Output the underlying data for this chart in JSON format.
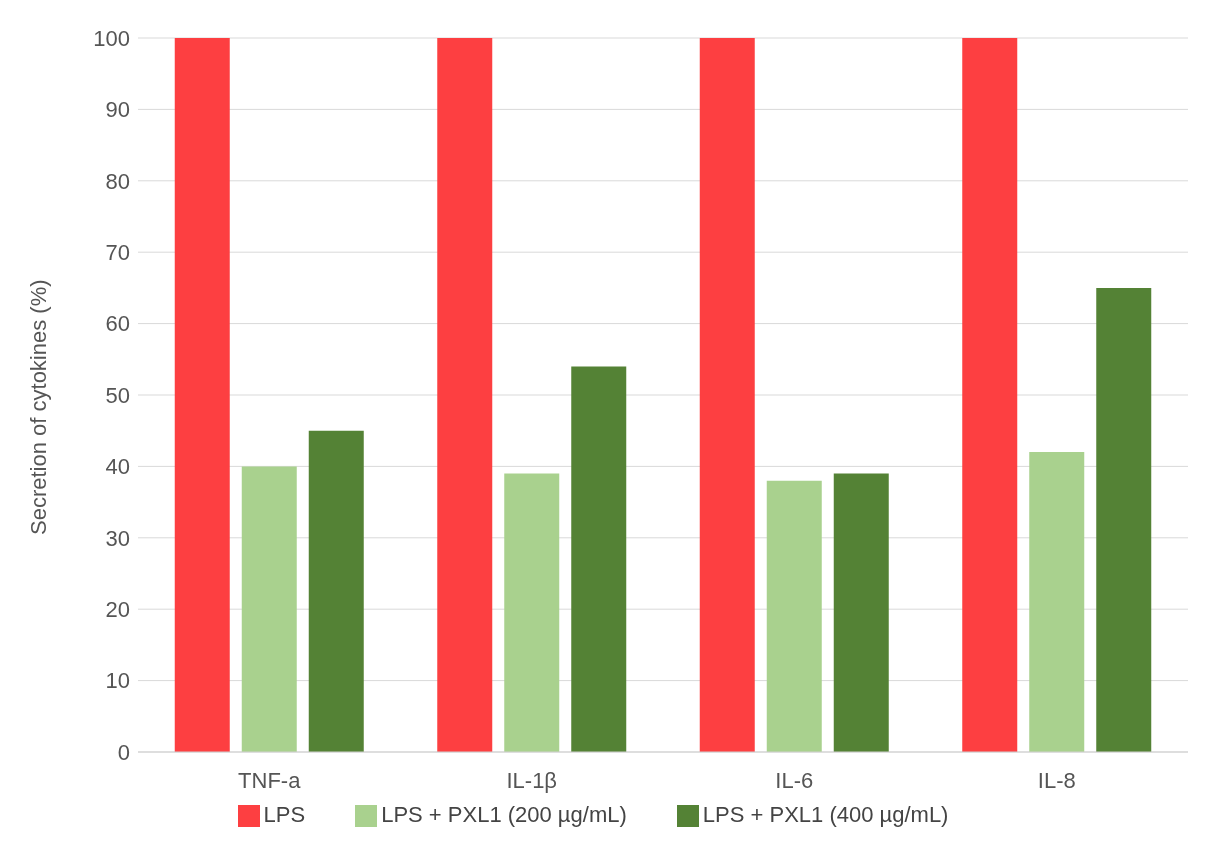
{
  "chart_data": {
    "type": "bar",
    "ylabel": "Secretion of cytokines (%)",
    "categories": [
      "TNF-a",
      "IL-1β",
      "IL-6",
      "IL-8"
    ],
    "series": [
      {
        "name": "LPS",
        "color": "#fd3f41",
        "values": [
          100,
          100,
          100,
          100
        ]
      },
      {
        "name": "LPS + PXL1 (200 µg/mL)",
        "color": "#a9d18e",
        "values": [
          40,
          39,
          38,
          42
        ]
      },
      {
        "name": "LPS + PXL1 (400 µg/mL)",
        "color": "#548235",
        "values": [
          45,
          54,
          39,
          65
        ]
      }
    ],
    "ylim": [
      0,
      100
    ],
    "yticks": [
      0,
      10,
      20,
      30,
      40,
      50,
      60,
      70,
      80,
      90,
      100
    ],
    "grid": "y",
    "legend": "bottom"
  }
}
